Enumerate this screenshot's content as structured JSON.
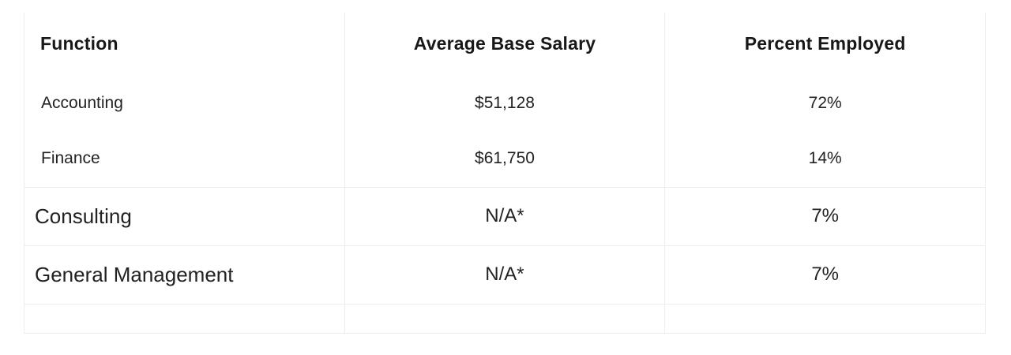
{
  "chart_data": {
    "type": "table",
    "title": "",
    "columns": [
      "Function",
      "Average Base Salary",
      "Percent Employed"
    ],
    "rows": [
      [
        "Accounting",
        "$51,128",
        "72%"
      ],
      [
        "Finance",
        "$61,750",
        "14%"
      ],
      [
        "Consulting",
        "N/A*",
        "7%"
      ],
      [
        "General Management",
        "N/A*",
        "7%"
      ],
      [
        "",
        "",
        ""
      ]
    ],
    "layout": {
      "grid": "partial",
      "horizontal_rules_below": [
        "Finance",
        "Consulting",
        "General Management"
      ],
      "column_alignment": [
        "left",
        "center",
        "center"
      ]
    }
  },
  "colors": {
    "background": "#ffffff",
    "border": "#ededed",
    "header_text": "#181818",
    "body_text": "#222222"
  }
}
